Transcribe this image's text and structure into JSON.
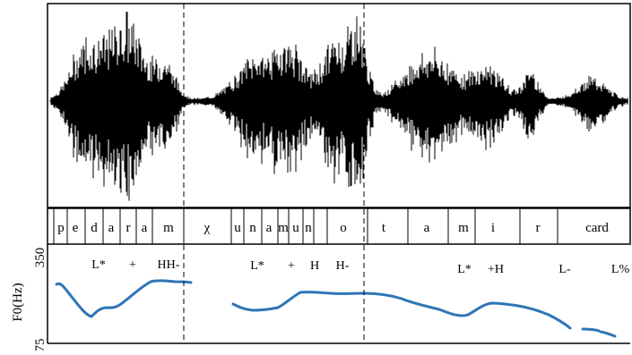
{
  "y_axis": {
    "label": "F0(Hz)",
    "max_label": "350",
    "min_label": "75",
    "range_hz": [
      75,
      350
    ]
  },
  "segments": [
    "p",
    "e",
    "d",
    "a",
    "r",
    "a",
    "m",
    "χ",
    "u",
    "n",
    "a",
    "m",
    "u",
    "n",
    "o",
    "t",
    "a",
    "m",
    "i",
    "r",
    "card"
  ],
  "tones": [
    {
      "label": "L*"
    },
    {
      "label": "+"
    },
    {
      "label": "HH-"
    },
    {
      "label": "L*"
    },
    {
      "label": "+"
    },
    {
      "label": "H"
    },
    {
      "label": "H-"
    },
    {
      "label": "L*"
    },
    {
      "label": "+H"
    },
    {
      "label": "L-"
    },
    {
      "label": "L%"
    }
  ],
  "colors": {
    "pitch_track": "#2e75b6",
    "waveform": "#000000",
    "frame": "#000000"
  }
}
